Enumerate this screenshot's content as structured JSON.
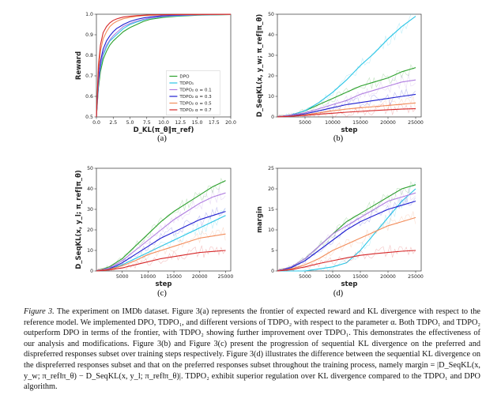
{
  "colors": {
    "DPO": "#2ca02c",
    "TDPO1": "#29c5e6",
    "TDPO2_01": "#b07ee0",
    "TDPO2_03": "#1f1fd0",
    "TDPO2_05": "#f28c5a",
    "TDPO2_07": "#d62728"
  },
  "labels": {
    "a": "(a)",
    "b": "(b)",
    "c": "(c)",
    "d": "(d)"
  },
  "chart_data": [
    {
      "type": "line",
      "panel": "a",
      "xlabel": "D_KL(π_θ‖π_ref)",
      "ylabel": "Reward",
      "xlim": [
        0,
        20
      ],
      "ylim": [
        0.5,
        1.0
      ],
      "xticks": [
        "0.0",
        "2.5",
        "5.0",
        "7.5",
        "10.0",
        "12.5",
        "15.0",
        "17.5",
        "20.0"
      ],
      "yticks": [
        "0.5",
        "0.6",
        "0.7",
        "0.8",
        "0.9",
        "1.0"
      ],
      "legend_position": "lower-right",
      "series": [
        {
          "name": "DPO",
          "color_key": "DPO",
          "x": [
            0,
            0.3,
            0.6,
            1,
            1.5,
            2,
            2.5,
            3,
            3.5,
            4,
            5,
            6,
            7,
            8,
            10,
            12,
            15,
            20
          ],
          "y": [
            0.5,
            0.64,
            0.72,
            0.78,
            0.82,
            0.85,
            0.87,
            0.885,
            0.9,
            0.915,
            0.935,
            0.95,
            0.965,
            0.975,
            0.985,
            0.99,
            0.995,
            0.998
          ]
        },
        {
          "name": "TDPO₁",
          "color_key": "TDPO1",
          "x": [
            0,
            0.3,
            0.6,
            1,
            1.5,
            2,
            2.5,
            3,
            3.5,
            4,
            5,
            6,
            7,
            8,
            10,
            12,
            15,
            20
          ],
          "y": [
            0.5,
            0.66,
            0.74,
            0.8,
            0.84,
            0.87,
            0.885,
            0.9,
            0.915,
            0.93,
            0.95,
            0.962,
            0.972,
            0.98,
            0.988,
            0.992,
            0.996,
            0.998
          ]
        },
        {
          "name": "TDPO₂ α = 0.1",
          "color_key": "TDPO2_01",
          "x": [
            0,
            0.3,
            0.6,
            1,
            1.5,
            2,
            2.5,
            3,
            3.5,
            4,
            5,
            6,
            7,
            8,
            10,
            12,
            15,
            20
          ],
          "y": [
            0.5,
            0.66,
            0.75,
            0.81,
            0.85,
            0.875,
            0.895,
            0.91,
            0.925,
            0.94,
            0.955,
            0.967,
            0.975,
            0.982,
            0.99,
            0.994,
            0.997,
            0.999
          ]
        },
        {
          "name": "TDPO₂ α = 0.3",
          "color_key": "TDPO2_03",
          "x": [
            0,
            0.3,
            0.6,
            1,
            1.5,
            2,
            2.5,
            3,
            3.5,
            4,
            5,
            6,
            7,
            8,
            10,
            12,
            15,
            20
          ],
          "y": [
            0.5,
            0.68,
            0.77,
            0.83,
            0.87,
            0.895,
            0.915,
            0.93,
            0.94,
            0.95,
            0.965,
            0.975,
            0.982,
            0.987,
            0.993,
            0.996,
            0.998,
            0.999
          ]
        },
        {
          "name": "TDPO₂ α = 0.5",
          "color_key": "TDPO2_05",
          "x": [
            0,
            0.3,
            0.6,
            1,
            1.5,
            2,
            2.5,
            3,
            3.5,
            4,
            5,
            6,
            7,
            8,
            10,
            12,
            15,
            20
          ],
          "y": [
            0.5,
            0.72,
            0.82,
            0.88,
            0.915,
            0.94,
            0.955,
            0.965,
            0.972,
            0.978,
            0.985,
            0.99,
            0.993,
            0.995,
            0.997,
            0.998,
            0.999,
            0.999
          ]
        },
        {
          "name": "TDPO₂ α = 0.7",
          "color_key": "TDPO2_07",
          "x": [
            0,
            0.3,
            0.6,
            1,
            1.5,
            2,
            2.5,
            3,
            3.5,
            4,
            5,
            6,
            7,
            8,
            10,
            12,
            15,
            20
          ],
          "y": [
            0.5,
            0.75,
            0.85,
            0.91,
            0.94,
            0.958,
            0.97,
            0.977,
            0.982,
            0.986,
            0.99,
            0.993,
            0.995,
            0.997,
            0.998,
            0.999,
            0.999,
            1.0
          ]
        }
      ]
    },
    {
      "type": "line",
      "panel": "b",
      "xlabel": "step",
      "ylabel": "D_SeqKL(x, y_w; π_ref‖π_θ)",
      "xlim": [
        0,
        26000
      ],
      "ylim": [
        0,
        50
      ],
      "xticks": [
        "5000",
        "10000",
        "15000",
        "20000",
        "25000"
      ],
      "yticks": [
        "0",
        "10",
        "20",
        "30",
        "40",
        "50"
      ],
      "series": [
        {
          "name": "DPO",
          "color_key": "DPO",
          "x": [
            0,
            2500,
            5000,
            7500,
            10000,
            12500,
            15000,
            17500,
            20000,
            22500,
            25000
          ],
          "y": [
            0,
            1,
            3,
            6,
            9,
            12,
            15,
            17,
            19,
            22,
            24
          ]
        },
        {
          "name": "TDPO₁",
          "color_key": "TDPO1",
          "x": [
            0,
            2500,
            5000,
            7500,
            10000,
            12500,
            15000,
            17500,
            20000,
            22500,
            25000
          ],
          "y": [
            0,
            1,
            3,
            7,
            12,
            18,
            25,
            31,
            38,
            44,
            49
          ]
        },
        {
          "name": "TDPO₂ α = 0.1",
          "color_key": "TDPO2_01",
          "x": [
            0,
            2500,
            5000,
            7500,
            10000,
            12500,
            15000,
            17500,
            20000,
            22500,
            25000
          ],
          "y": [
            0,
            1,
            2,
            4,
            6,
            8,
            11,
            13,
            15,
            17,
            18
          ]
        },
        {
          "name": "TDPO₂ α = 0.3",
          "color_key": "TDPO2_03",
          "x": [
            0,
            2500,
            5000,
            7500,
            10000,
            12500,
            15000,
            17500,
            20000,
            22500,
            25000
          ],
          "y": [
            0,
            0.5,
            1.5,
            3,
            4.5,
            6,
            7,
            8,
            9,
            10,
            11
          ]
        },
        {
          "name": "TDPO₂ α = 0.5",
          "color_key": "TDPO2_05",
          "x": [
            0,
            2500,
            5000,
            7500,
            10000,
            12500,
            15000,
            17500,
            20000,
            22500,
            25000
          ],
          "y": [
            0,
            0.4,
            1,
            2,
            3,
            3.8,
            4.5,
            5,
            5.6,
            6.2,
            6.8
          ]
        },
        {
          "name": "TDPO₂ α = 0.7",
          "color_key": "TDPO2_07",
          "x": [
            0,
            2500,
            5000,
            7500,
            10000,
            12500,
            15000,
            17500,
            20000,
            22500,
            25000
          ],
          "y": [
            0,
            0.3,
            0.8,
            1.3,
            1.8,
            2.3,
            2.7,
            3.1,
            3.5,
            3.8,
            4
          ]
        }
      ]
    },
    {
      "type": "line",
      "panel": "c",
      "xlabel": "step",
      "ylabel": "D_SeqKL(x, y_l; π_ref‖π_θ)",
      "xlim": [
        0,
        26000
      ],
      "ylim": [
        0,
        50
      ],
      "xticks": [
        "5000",
        "10000",
        "15000",
        "20000",
        "25000"
      ],
      "yticks": [
        "0",
        "10",
        "20",
        "30",
        "40",
        "50"
      ],
      "series": [
        {
          "name": "DPO",
          "color_key": "DPO",
          "x": [
            0,
            2500,
            5000,
            7500,
            10000,
            12500,
            15000,
            17500,
            20000,
            22500,
            25000
          ],
          "y": [
            0,
            2,
            6,
            12,
            18,
            24,
            29,
            33,
            37,
            41,
            44
          ]
        },
        {
          "name": "TDPO₁",
          "color_key": "TDPO1",
          "x": [
            0,
            2500,
            5000,
            7500,
            10000,
            12500,
            15000,
            17500,
            20000,
            22500,
            25000
          ],
          "y": [
            0,
            1,
            3,
            6,
            9,
            12,
            15,
            18,
            21,
            24,
            27
          ]
        },
        {
          "name": "TDPO₂ α = 0.1",
          "color_key": "TDPO2_01",
          "x": [
            0,
            2500,
            5000,
            7500,
            10000,
            12500,
            15000,
            17500,
            20000,
            22500,
            25000
          ],
          "y": [
            0,
            1.5,
            5,
            10,
            15,
            20,
            25,
            29,
            33,
            36,
            38
          ]
        },
        {
          "name": "TDPO₂ α = 0.3",
          "color_key": "TDPO2_03",
          "x": [
            0,
            2500,
            5000,
            7500,
            10000,
            12500,
            15000,
            17500,
            20000,
            22500,
            25000
          ],
          "y": [
            0,
            1,
            4,
            8,
            12,
            16,
            19,
            22,
            25,
            27,
            29
          ]
        },
        {
          "name": "TDPO₂ α = 0.5",
          "color_key": "TDPO2_05",
          "x": [
            0,
            2500,
            5000,
            7500,
            10000,
            12500,
            15000,
            17500,
            20000,
            22500,
            25000
          ],
          "y": [
            0,
            0.8,
            2.5,
            5,
            8,
            10,
            12,
            14,
            16,
            17,
            18
          ]
        },
        {
          "name": "TDPO₂ α = 0.7",
          "color_key": "TDPO2_07",
          "x": [
            0,
            2500,
            5000,
            7500,
            10000,
            12500,
            15000,
            17500,
            20000,
            22500,
            25000
          ],
          "y": [
            0,
            0.5,
            1.5,
            3,
            4.5,
            6,
            7,
            8,
            9,
            9.5,
            10
          ]
        }
      ]
    },
    {
      "type": "line",
      "panel": "d",
      "xlabel": "step",
      "ylabel": "margin",
      "xlim": [
        0,
        26000
      ],
      "ylim": [
        0,
        25
      ],
      "xticks": [
        "5000",
        "10000",
        "15000",
        "20000",
        "25000"
      ],
      "yticks": [
        "0",
        "5",
        "10",
        "15",
        "20",
        "25"
      ],
      "series": [
        {
          "name": "DPO",
          "color_key": "DPO",
          "x": [
            0,
            2500,
            5000,
            7500,
            10000,
            12500,
            15000,
            17500,
            20000,
            22500,
            25000
          ],
          "y": [
            0,
            1,
            3,
            6,
            9,
            12,
            14,
            16,
            18,
            20,
            21
          ]
        },
        {
          "name": "TDPO₁",
          "color_key": "TDPO1",
          "x": [
            0,
            2500,
            5000,
            7500,
            10000,
            12500,
            15000,
            17500,
            20000,
            22500,
            25000
          ],
          "y": [
            0,
            0,
            0,
            0.5,
            1,
            2,
            5,
            9,
            13,
            17,
            20
          ]
        },
        {
          "name": "TDPO₂ α = 0.1",
          "color_key": "TDPO2_01",
          "x": [
            0,
            2500,
            5000,
            7500,
            10000,
            12500,
            15000,
            17500,
            20000,
            22500,
            25000
          ],
          "y": [
            0,
            1,
            3,
            6,
            9,
            11,
            13,
            15,
            17,
            18,
            19
          ]
        },
        {
          "name": "TDPO₂ α = 0.3",
          "color_key": "TDPO2_03",
          "x": [
            0,
            2500,
            5000,
            7500,
            10000,
            12500,
            15000,
            17500,
            20000,
            22500,
            25000
          ],
          "y": [
            0,
            0.8,
            2.5,
            5,
            7.5,
            10,
            12,
            13.5,
            15,
            16,
            17
          ]
        },
        {
          "name": "TDPO₂ α = 0.5",
          "color_key": "TDPO2_05",
          "x": [
            0,
            2500,
            5000,
            7500,
            10000,
            12500,
            15000,
            17500,
            20000,
            22500,
            25000
          ],
          "y": [
            0,
            0.5,
            1.5,
            3,
            5,
            6.5,
            8,
            9.5,
            11,
            12,
            13
          ]
        },
        {
          "name": "TDPO₂ α = 0.7",
          "color_key": "TDPO2_07",
          "x": [
            0,
            2500,
            5000,
            7500,
            10000,
            12500,
            15000,
            17500,
            20000,
            22500,
            25000
          ],
          "y": [
            0,
            0.3,
            1,
            1.8,
            2.5,
            3.2,
            3.8,
            4.2,
            4.5,
            4.8,
            5
          ]
        }
      ]
    }
  ],
  "caption": {
    "lead": "Figure 3.",
    "lines": [
      "The experiment on IMDb dataset. Figure 3(a) represents the frontier of expected reward and KL divergence with respect to the",
      "reference model. We implemented DPO, TDPO₁, and different versions of TDPO₂ with respect to the parameter α. Both TDPO₁ and",
      "TDPO₂ outperform DPO in terms of the frontier, with TDPO₂ showing further improvement over TDPO₁. This demonstrates the",
      "effectiveness of our analysis and modifications. Figure 3(b) and Figure 3(c) present the progression of sequential KL divergence on the",
      "preferred and dispreferred responses subset over training steps respectively. Figure 3(d) illustrates the difference between the sequential",
      "KL divergence on the dispreferred responses subset and that on the preferred responses subset throughout the training process, namely",
      "margin = |D_SeqKL(x, y_w; π_ref‖π_θ) − D_SeqKL(x, y_l; π_ref‖π_θ)|. TDPO₂ exhibit superior regulation over KL divergence compared to",
      "the TDPO₁ and DPO algorithm."
    ]
  }
}
